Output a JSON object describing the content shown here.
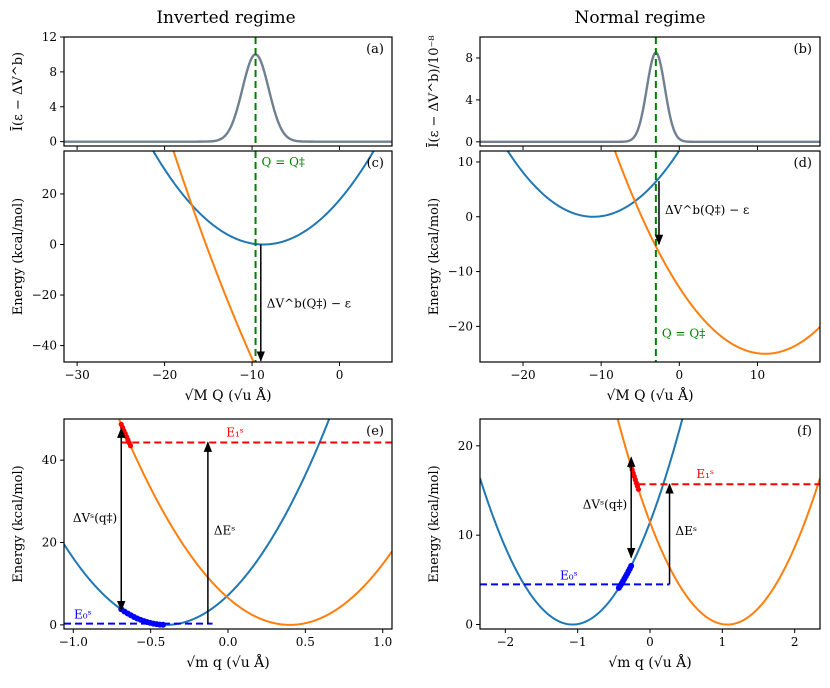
{
  "column_titles": {
    "left": "Inverted regime",
    "right": "Normal regime"
  },
  "colors": {
    "curve_a": "#1f77b4",
    "curve_b": "#ff7f0e",
    "spectrum": "#708090",
    "qstar": "#008000",
    "e0": "#0000ff",
    "e1": "#ff0000",
    "trajectory": "#0000ff"
  },
  "chart_data": [
    {
      "id": "a",
      "panel_label": "(a)",
      "type": "line",
      "ylabel": "Ī(ε − ΔV^b)",
      "xlim": [
        -31.5,
        6.0
      ],
      "ylim": [
        -0.5,
        12
      ],
      "yticks": [
        0,
        4,
        8,
        12
      ],
      "yticklabels": [
        "0",
        "4",
        "8",
        "12"
      ],
      "xticks": [
        -30,
        -20,
        -10,
        0
      ],
      "xticklabels": [],
      "gaussian": {
        "center": -9.6,
        "sigma": 1.5,
        "amplitude": 10
      },
      "vline": {
        "x": -9.6,
        "label": ""
      }
    },
    {
      "id": "b",
      "panel_label": "(b)",
      "type": "line",
      "ylabel": "Ī(ε − ΔV^b)/10⁻⁸",
      "xlim": [
        -25.5,
        18.0
      ],
      "ylim": [
        -0.4,
        10
      ],
      "yticks": [
        0,
        4,
        8
      ],
      "yticklabels": [
        "0",
        "4",
        "8"
      ],
      "xticks": [
        -20,
        -10,
        0,
        10
      ],
      "xticklabels": [],
      "gaussian": {
        "center": -3.0,
        "sigma": 1.15,
        "amplitude": 8.5
      },
      "vline": {
        "x": -3.0,
        "label": ""
      }
    },
    {
      "id": "c",
      "panel_label": "(c)",
      "type": "line",
      "xlabel": "√M Q (√u Å)",
      "ylabel": "Energy (kcal/mol)",
      "xlim": [
        -31.5,
        6.0
      ],
      "ylim": [
        -46.5,
        37
      ],
      "yticks": [
        -40,
        -20,
        0,
        20
      ],
      "yticklabels": [
        "−40",
        "−20",
        "0",
        "20"
      ],
      "xticks": [
        -30,
        -20,
        -10,
        0
      ],
      "xticklabels": [
        "−30",
        "−20",
        "−10",
        "0"
      ],
      "curves": [
        {
          "name": "",
          "color": "#1f77b4",
          "form": "parabola",
          "center": -8.7,
          "minimum": 0,
          "k": 0.233
        },
        {
          "name": "",
          "color": "#ff7f0e",
          "form": "parabola",
          "center": 15.0,
          "minimum": -142,
          "k": 0.155
        }
      ],
      "vline": {
        "x": -9.6,
        "label": "Q = Q‡",
        "label_y": 31
      },
      "arrow": {
        "x": -9.0,
        "y_from": 0.0,
        "y_to": -46.0,
        "label": "ΔV^b(Q‡) − ε",
        "label_y": -25
      }
    },
    {
      "id": "d",
      "panel_label": "(d)",
      "type": "line",
      "xlabel": "√M Q (√u Å)",
      "ylabel": "Energy (kcal/mol)",
      "xlim": [
        -25.5,
        18.0
      ],
      "ylim": [
        -26.5,
        12
      ],
      "yticks": [
        -20,
        -10,
        0,
        10
      ],
      "yticklabels": [
        "−20",
        "−10",
        "0",
        "10"
      ],
      "xticks": [
        -20,
        -10,
        0,
        10
      ],
      "xticklabels": [
        "−20",
        "−10",
        "0",
        "10"
      ],
      "curves": [
        {
          "name": "",
          "color": "#1f77b4",
          "form": "parabola",
          "center": -11.0,
          "minimum": 0,
          "k": 0.1
        },
        {
          "name": "",
          "color": "#ff7f0e",
          "form": "parabola",
          "center": 11.0,
          "minimum": -25,
          "k": 0.1
        }
      ],
      "vline": {
        "x": -3.0,
        "label": "Q = Q‡",
        "label_y": -22
      },
      "arrow": {
        "x": -2.6,
        "y_from": 6.5,
        "y_to": -5.0,
        "label": "ΔV^b(Q‡) − ε",
        "label_y": 0.5
      }
    },
    {
      "id": "e",
      "panel_label": "(e)",
      "type": "line",
      "xlabel": "√m q (√u Å)",
      "ylabel": "Energy (kcal/mol)",
      "xlim": [
        -1.06,
        1.06
      ],
      "ylim": [
        -1,
        50
      ],
      "yticks": [
        0,
        20,
        40
      ],
      "yticklabels": [
        "0",
        "20",
        "40"
      ],
      "xticks": [
        -1.0,
        -0.5,
        0.0,
        0.5,
        1.0
      ],
      "xticklabels": [
        "−1.0",
        "−0.5",
        "0.0",
        "0.5",
        "1.0"
      ],
      "curves": [
        {
          "name": "",
          "color": "#1f77b4",
          "form": "parabola",
          "center": -0.4,
          "minimum": 0,
          "k": 45
        },
        {
          "name": "",
          "color": "#ff7f0e",
          "form": "parabola",
          "center": 0.4,
          "minimum": 0,
          "k": 41
        }
      ],
      "e0": {
        "y": 0.3,
        "x_from": -1.06,
        "x_to": -0.1,
        "label": "E₀ˢ"
      },
      "e1": {
        "y": 44.3,
        "x_from": -0.69,
        "x_to": 1.06,
        "label": "E₁ˢ"
      },
      "arrow_left": {
        "x": -0.69,
        "y_from": 3.5,
        "y_to": 47.7,
        "label": "ΔVˢ(q‡)",
        "label_y": 25
      },
      "arrow_right": {
        "x": -0.13,
        "y_from": 0.3,
        "y_to": 44.3,
        "label": "ΔEˢ",
        "label_y": 22
      },
      "blue_track": {
        "x_from": -0.69,
        "x_to": -0.42,
        "n": 14
      },
      "red_track": {
        "x_from": -0.69,
        "x_to": -0.63,
        "n": 8
      }
    },
    {
      "id": "f",
      "panel_label": "(f)",
      "type": "line",
      "xlabel": "√m q (√u Å)",
      "ylabel": "Energy (kcal/mol)",
      "xlim": [
        -2.35,
        2.35
      ],
      "ylim": [
        -0.5,
        23
      ],
      "yticks": [
        0,
        10,
        20
      ],
      "yticklabels": [
        "0",
        "10",
        "20"
      ],
      "xticks": [
        -2,
        -1,
        0,
        1,
        2
      ],
      "xticklabels": [
        "−2",
        "−1",
        "0",
        "1",
        "2"
      ],
      "curves": [
        {
          "name": "",
          "color": "#1f77b4",
          "form": "parabola",
          "center": -1.07,
          "minimum": 0,
          "k": 10.0
        },
        {
          "name": "",
          "color": "#ff7f0e",
          "form": "parabola",
          "center": 1.07,
          "minimum": 0,
          "k": 10.0
        }
      ],
      "e0": {
        "y": 4.5,
        "x_from": -2.35,
        "x_to": 0.27,
        "label": "E₀ˢ"
      },
      "e1": {
        "y": 15.7,
        "x_from": -0.16,
        "x_to": 2.35,
        "label": "E₁ˢ"
      },
      "arrow_left": {
        "x": -0.26,
        "y_from": 7.5,
        "y_to": 18.7,
        "label": "ΔVˢ(q‡)",
        "label_y": 13
      },
      "arrow_right": {
        "x": 0.27,
        "y_from": 4.5,
        "y_to": 15.7,
        "label": "ΔEˢ",
        "label_y": 10
      },
      "blue_track": {
        "x_from": -0.26,
        "x_to": -0.43,
        "n": 10
      },
      "red_track": {
        "x_from": -0.26,
        "x_to": -0.16,
        "n": 8
      }
    }
  ]
}
